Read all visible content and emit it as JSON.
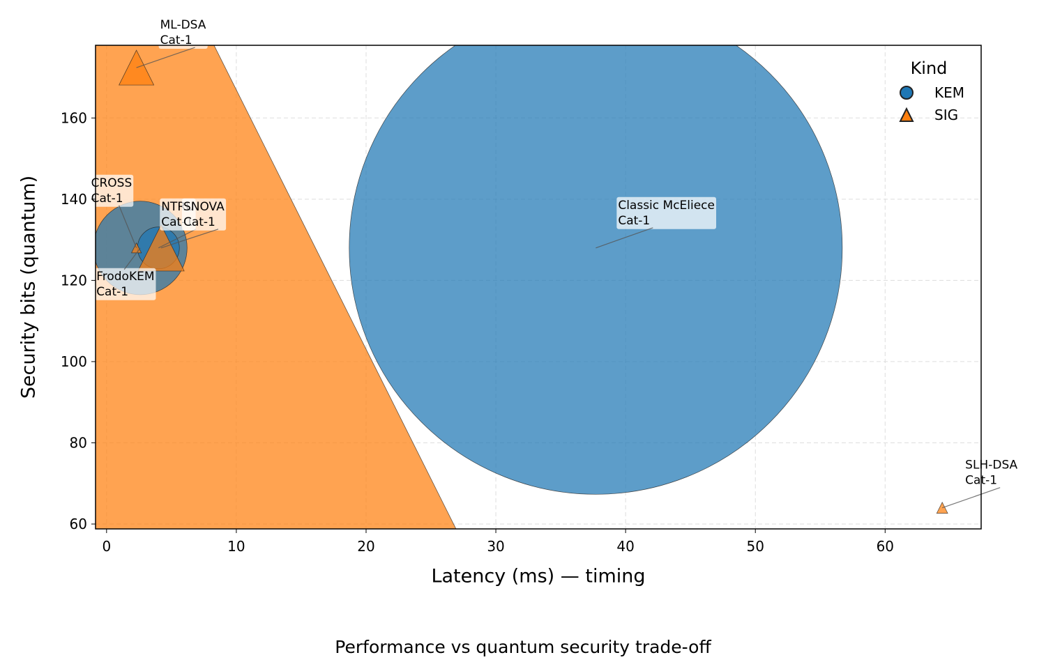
{
  "chart_data": {
    "type": "bubble",
    "title": "Performance vs quantum security trade-off",
    "x_label": "Latency (ms) — timing",
    "y_label": "Security bits (quantum)",
    "legend_title": "Kind",
    "legend_position": "upper right",
    "grid": true,
    "xlim": [
      -0.85,
      67.4
    ],
    "ylim": [
      58.8,
      177.9
    ],
    "xticks": [
      0,
      10,
      20,
      30,
      40,
      50,
      60
    ],
    "yticks": [
      60,
      80,
      100,
      120,
      140,
      160
    ],
    "series": [
      {
        "name": "KEM",
        "marker": "circle",
        "color": "#1f77b4",
        "x": [
          37.7,
          2.6,
          4.0
        ],
        "values": [
          128,
          128,
          128
        ],
        "sizes": [
          500000,
          18000,
          3600
        ],
        "labels": [
          [
            "Classic McEliece",
            "Cat-1"
          ],
          [
            "FrodoKEM",
            "Cat-1"
          ],
          [
            "NTRU",
            "Cat-1"
          ]
        ]
      },
      {
        "name": "SIG",
        "marker": "triangle",
        "color": "#ff7f0e",
        "x": [
          2.5,
          2.3,
          2.3,
          4.2,
          64.4
        ],
        "values": [
          128,
          172.4,
          128,
          128,
          64
        ],
        "sizes": [
          1024000,
          2500,
          200,
          4400,
          250
        ],
        "labels": [
          null,
          [
            "ML-DSA",
            "Cat-1"
          ],
          [
            "CROSS",
            "Cat-1"
          ],
          [
            "SNOVA",
            "Cat-1"
          ],
          [
            "SLH-DSA",
            "Cat-1"
          ]
        ]
      }
    ]
  }
}
